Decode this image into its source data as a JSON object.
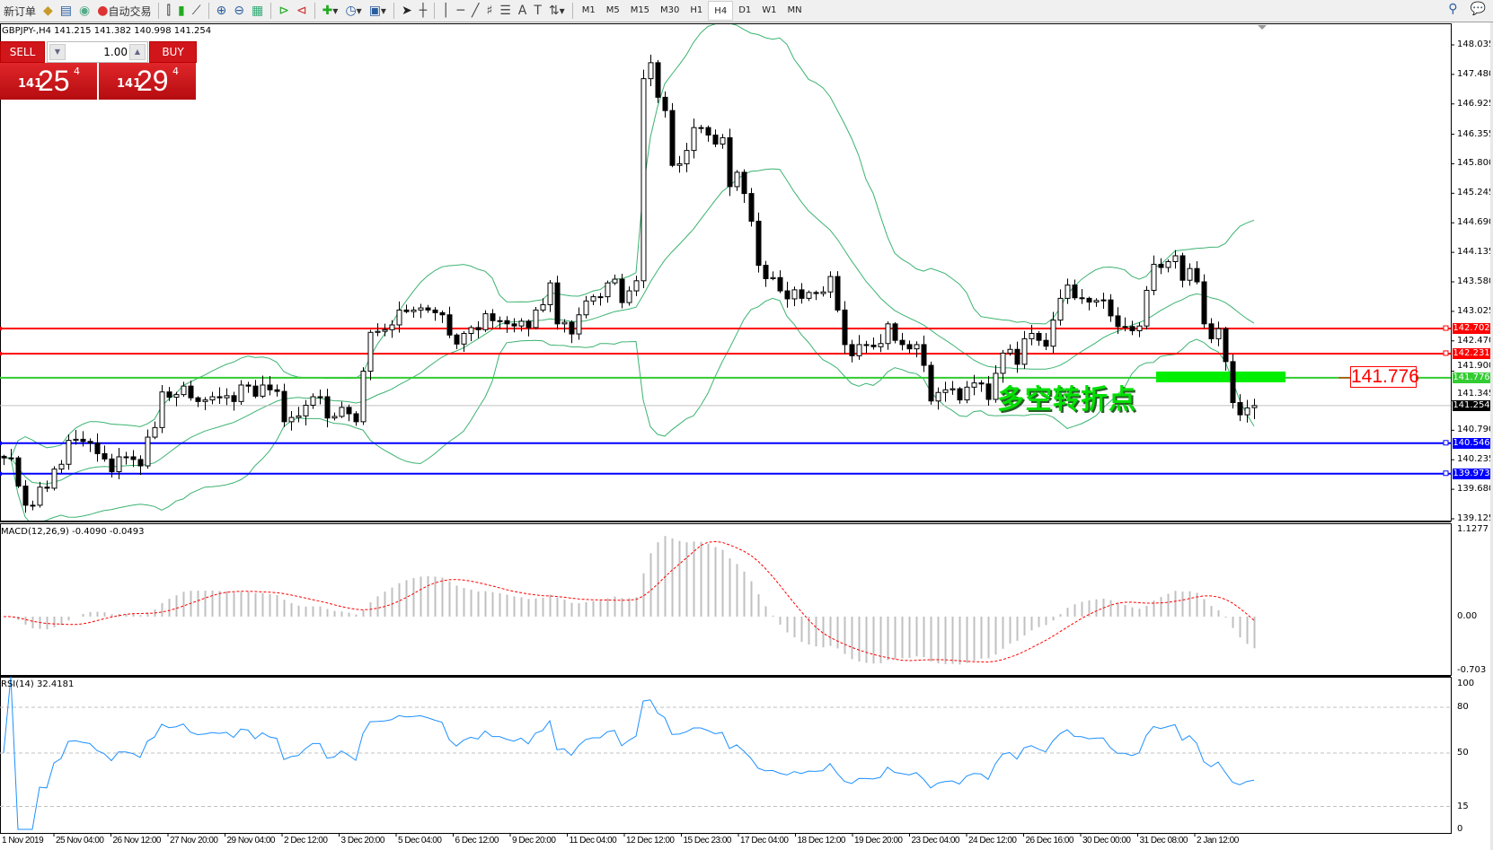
{
  "toolbar": {
    "new_order": "新订单",
    "auto_trading": "自动交易",
    "icons": [
      "experts-icon",
      "navigator-icon",
      "signals-icon",
      "bar-chart-icon",
      "candlestick-icon",
      "line-chart-icon",
      "zoom-in-icon",
      "zoom-out-icon",
      "tile-windows-icon",
      "chart-shift-icon",
      "autoscroll-icon",
      "add-indicator-icon",
      "periods-icon",
      "templates-icon",
      "cursor-icon",
      "crosshair-icon",
      "vertical-line-icon",
      "horizontal-line-icon",
      "trendline-icon",
      "fibonacci-icon",
      "fibo-fan-icon",
      "text-icon",
      "text-label-icon",
      "arrows-icon"
    ],
    "timeframes": [
      "M1",
      "M5",
      "M15",
      "M30",
      "H1",
      "H4",
      "D1",
      "W1",
      "MN"
    ],
    "selected_timeframe": "H4"
  },
  "symbol_line": "GBPJPY-,H4  141.215 141.382 140.998 141.254",
  "trade_panel": {
    "sell_label": "SELL",
    "buy_label": "BUY",
    "lot": "1.00",
    "sell_big": "141",
    "sell_main": "25",
    "sell_sup": "4",
    "buy_big": "141",
    "buy_main": "29",
    "buy_sup": "4"
  },
  "annotation": {
    "price_box": "141.776",
    "text": "多空转折点",
    "color": "#00e000"
  },
  "indicators": {
    "macd_label": "MACD(12,26,9) -0.4090 -0.0493",
    "rsi_label": "RSI(14) 32.4181"
  },
  "chart_data": {
    "type": "candlestick",
    "symbol": "GBPJPY-",
    "timeframe": "H4",
    "last_bar": {
      "open": 141.215,
      "high": 141.382,
      "low": 140.998,
      "close": 141.254
    },
    "close": [
      140.27,
      140.27,
      139.74,
      139.38,
      139.38,
      139.72,
      139.7,
      140.06,
      140.15,
      140.6,
      140.62,
      140.58,
      140.55,
      140.35,
      140.25,
      140.01,
      140.29,
      140.29,
      140.24,
      140.12,
      140.66,
      140.84,
      141.51,
      141.41,
      141.46,
      141.62,
      141.4,
      141.33,
      141.36,
      141.42,
      141.4,
      141.44,
      141.33,
      141.64,
      141.62,
      141.43,
      141.64,
      141.55,
      141.52,
      140.95,
      141.03,
      141.06,
      141.26,
      141.42,
      141.42,
      141.02,
      141.05,
      141.22,
      141.1,
      140.95,
      141.9,
      142.63,
      142.65,
      142.68,
      142.77,
      143.05,
      143.02,
      143.05,
      143.09,
      143.05,
      143.0,
      142.96,
      142.58,
      142.41,
      142.61,
      142.72,
      142.68,
      142.98,
      142.85,
      142.85,
      142.79,
      142.75,
      142.84,
      142.72,
      143.05,
      143.15,
      143.56,
      142.79,
      142.82,
      142.6,
      142.96,
      143.22,
      143.3,
      143.3,
      143.56,
      143.63,
      143.19,
      143.41,
      143.6,
      147.4,
      147.7,
      147.05,
      146.8,
      145.77,
      145.8,
      146.05,
      146.48,
      146.48,
      146.34,
      146.17,
      146.29,
      145.37,
      145.64,
      145.24,
      144.72,
      143.89,
      143.64,
      143.66,
      143.41,
      143.26,
      143.43,
      143.27,
      143.38,
      143.36,
      143.39,
      143.68,
      143.05,
      142.4,
      142.19,
      142.4,
      142.39,
      142.36,
      142.42,
      142.79,
      142.48,
      142.4,
      142.32,
      142.4,
      142.01,
      141.34,
      141.5,
      141.55,
      141.57,
      141.36,
      141.6,
      141.68,
      141.66,
      141.37,
      141.86,
      142.24,
      142.31,
      142.03,
      142.51,
      142.61,
      142.48,
      142.37,
      142.86,
      143.27,
      143.52,
      143.28,
      143.27,
      143.2,
      143.23,
      143.24,
      142.94,
      142.74,
      142.74,
      142.66,
      142.75,
      143.42,
      143.91,
      143.85,
      143.96,
      144.07,
      143.61,
      143.83,
      143.58,
      142.79,
      142.51,
      142.7,
      142.08,
      141.31,
      141.08,
      141.21,
      141.254
    ],
    "first_open": 140.3,
    "price_axis": {
      "ylim": [
        139.125,
        148.035
      ],
      "ticks": [
        "148.035",
        "147.480",
        "146.925",
        "146.355",
        "145.800",
        "145.245",
        "144.690",
        "144.135",
        "143.580",
        "143.025",
        "142.470",
        "141.900",
        "141.345",
        "140.790",
        "140.235",
        "139.680",
        "139.125"
      ]
    },
    "horizontal_lines": [
      {
        "price": "142.702",
        "color": "#ff0000"
      },
      {
        "price": "142.231",
        "color": "#ff0000"
      },
      {
        "price": "141.776",
        "color": "#33cc33"
      },
      {
        "price": "140.546",
        "color": "#0000ff"
      },
      {
        "price": "139.973",
        "color": "#0000ff"
      }
    ],
    "bid_line": {
      "price": "141.254",
      "color": "#000000"
    },
    "highlight_zone_price": 141.776,
    "overlay": {
      "name": "Bollinger Bands",
      "period": 20,
      "deviation": 2,
      "color": "#3cb371"
    },
    "macd": {
      "fast": 12,
      "slow": 26,
      "signal": 9,
      "axis_ticks": [
        "1.1277",
        "0.00",
        "-0.703"
      ],
      "ylim": [
        -0.703,
        1.1277
      ],
      "histogram_color": "#c0c0c0",
      "signal_color": "#ff0000"
    },
    "rsi": {
      "period": 14,
      "axis_ticks": [
        "100",
        "80",
        "50",
        "15",
        "0"
      ],
      "levels": [
        80,
        50,
        15
      ],
      "ylim": [
        0,
        100
      ],
      "color": "#1e90ff"
    },
    "time_labels": [
      "1 Nov 2019",
      "25 Nov 04:00",
      "26 Nov 12:00",
      "27 Nov 20:00",
      "29 Nov 04:00",
      "2 Dec 12:00",
      "3 Dec 20:00",
      "5 Dec 04:00",
      "6 Dec 12:00",
      "9 Dec 20:00",
      "11 Dec 04:00",
      "12 Dec 12:00",
      "15 Dec 23:00",
      "17 Dec 04:00",
      "18 Dec 12:00",
      "19 Dec 20:00",
      "23 Dec 04:00",
      "24 Dec 12:00",
      "26 Dec 16:00",
      "30 Dec 00:00",
      "31 Dec 08:00",
      "2 Jan 12:00"
    ]
  }
}
